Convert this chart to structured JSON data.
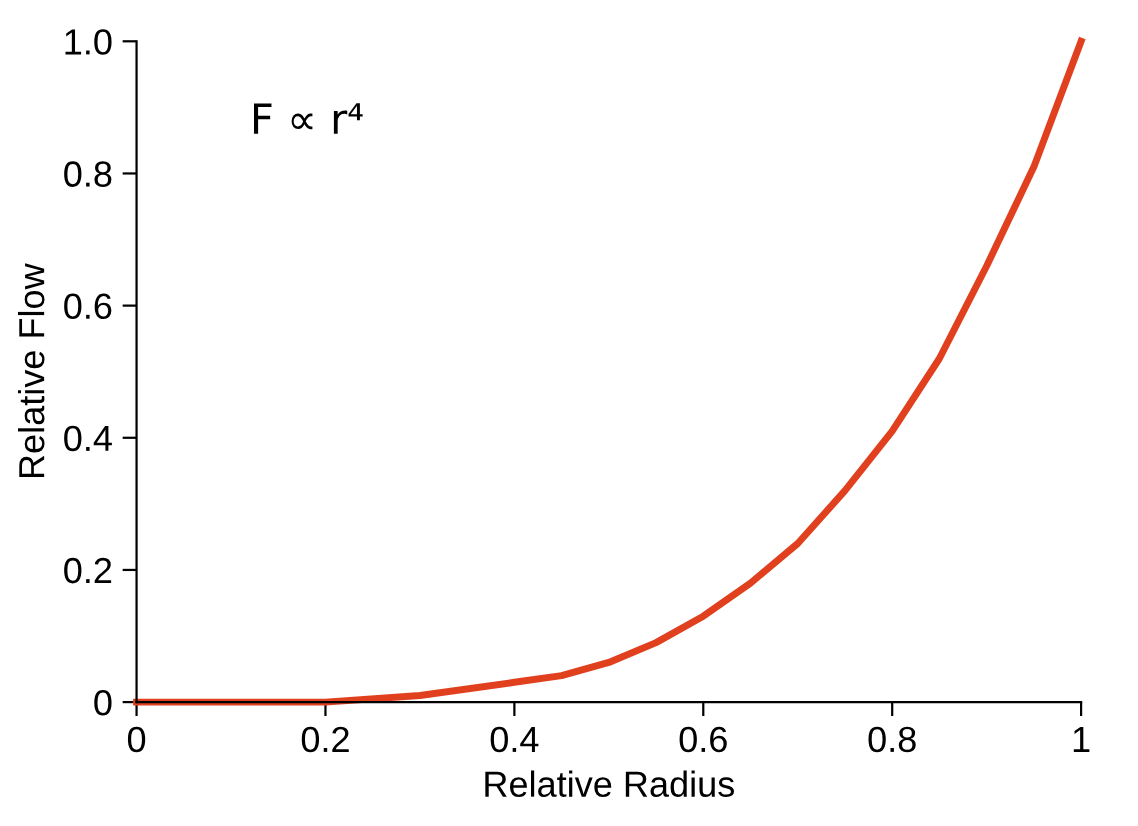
{
  "chart_data": {
    "type": "line",
    "xlabel": "Relative Radius",
    "ylabel": "Relative Flow",
    "annotations": [
      "F ∝ r⁴"
    ],
    "x": [
      0,
      0.1,
      0.2,
      0.3,
      0.4,
      0.45,
      0.5,
      0.55,
      0.6,
      0.65,
      0.7,
      0.75,
      0.8,
      0.85,
      0.9,
      0.95,
      1
    ],
    "series": [
      {
        "color": "#e0401e",
        "values": [
          0,
          0,
          0,
          0.01,
          0.03,
          0.04,
          0.06,
          0.09,
          0.13,
          0.18,
          0.24,
          0.32,
          0.41,
          0.52,
          0.66,
          0.81,
          1
        ]
      }
    ],
    "xlim": [
      0,
      1
    ],
    "ylim": [
      0,
      1
    ],
    "xticks": [
      0,
      0.2,
      0.4,
      0.6,
      0.8,
      1
    ],
    "yticks": [
      0,
      0.2,
      0.4,
      0.6,
      0.8,
      {
        "value": 1,
        "label": "1.0"
      }
    ],
    "grid": false,
    "legend": false,
    "line_style": "solid",
    "marker": "none"
  }
}
